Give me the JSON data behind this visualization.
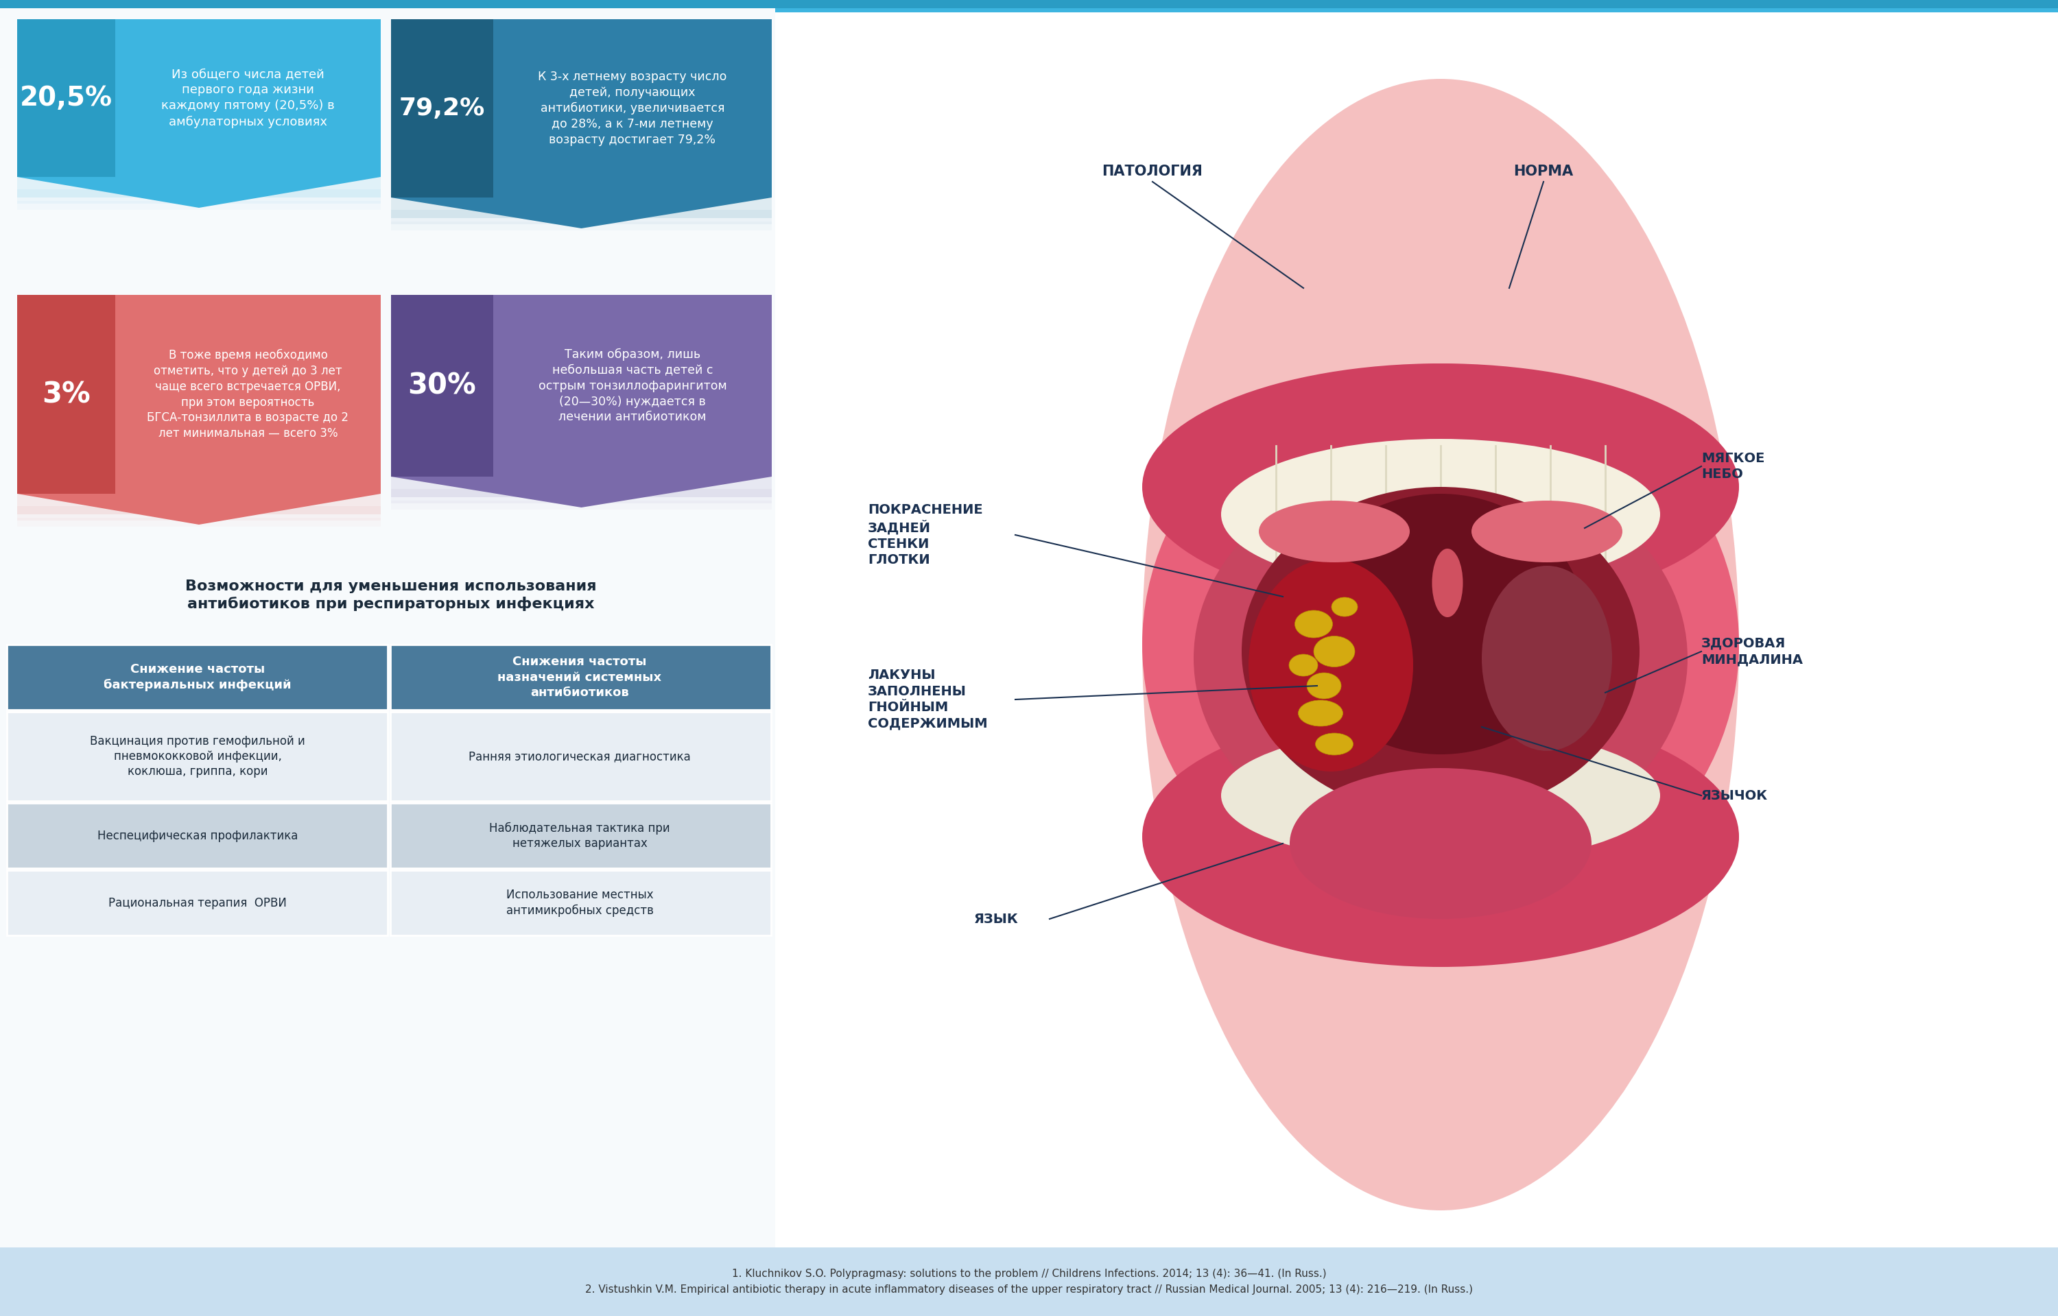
{
  "bg_color": "#ffffff",
  "top_stripe_color": "#3db5e0",
  "box1_pct": "20,5%",
  "box1_text": "Из общего числа детей\nпервого года жизни\nкаждому пятому (20,5%) в\nамбулаторных условиях",
  "box1_pct_color": "#2a9cc4",
  "box1_body_color": "#3db5e0",
  "box2_pct": "79,2%",
  "box2_text": "К 3-х летнему возрасту число\nдетей, получающих\nантибиотики, увеличивается\nдо 28%, а к 7-ми летнему\nвозрасту достигает 79,2%",
  "box2_pct_color": "#1e6080",
  "box2_body_color": "#2e7fa8",
  "box3_pct": "3%",
  "box3_text": "В тоже время необходимо\nотметить, что у детей до 3 лет\nчаще всего встречается ОРВИ,\nпри этом вероятность\nБГСА-тонзиллита в возрасте до 2\nлет минимальная — всего 3%",
  "box3_pct_color": "#c44848",
  "box3_body_color": "#e07070",
  "box4_pct": "30%",
  "box4_text": "Таким образом, лишь\nнебольшая часть детей с\nострым тонзиллофарингитом\n(20—30%) нуждается в\nлечении антибиотиком",
  "box4_pct_color": "#5a4a8a",
  "box4_body_color": "#7a6aaa",
  "table_title": "Возможности для уменьшения использования\nантибиотиков при респираторных инфекциях",
  "table_header1": "Снижение частоты\nбактериальных инфекций",
  "table_header2": "Снижения частоты\nназначений системных\nантибиотиков",
  "table_header_color": "#4a7a9b",
  "table_row1_left": "Вакцинация против гемофильной и\nпневмококковой инфекции,\nкоклюша, гриппа, кори",
  "table_row1_right": "Ранняя этиологическая диагностика",
  "table_row2_left": "Неспецифическая профилактика",
  "table_row2_right": "Наблюдательная тактика при\nнетяжелых вариантах",
  "table_row3_left": "Рациональная терапия  ОРВИ",
  "table_row3_right": "Использование местных\nантимикробных средств",
  "table_row_light": "#e8eef4",
  "table_row_dark": "#c8d4de",
  "anatomy_label_patho": "ПАТОЛОГИЯ",
  "anatomy_label_norm": "НОРМА",
  "anatomy_label3": "ПОКРАСНЕНИЕ\nЗАДНЕЙ\nСТЕНКИ\nГЛОТКИ",
  "anatomy_label4": "ЛАКУНЫ\nЗАПОЛНЕНЫ\nГНОЙНЫМ\nСОДЕРЖИМЫМ",
  "anatomy_label5": "ЯЗЫК",
  "anatomy_label6": "МЯГКОЕ\nНЕБО",
  "anatomy_label7": "ЗДОРОВАЯ\nМИНДАЛИНА",
  "anatomy_label8": "ЯЗЫЧОК",
  "footer_text": "1. Kluchnikov S.O. Polypragmasy: solutions to the problem // Childrens Infections. 2014; 13 (4): 36—41. (In Russ.)\n2. Vistushkin V.M. Empirical antibiotic therapy in acute inflammatory diseases of the upper respiratory tract // Russian Medical Journal. 2005; 13 (4): 216—219. (In Russ.)",
  "footer_color": "#c8dff0",
  "left_bg": "#f5f8fb",
  "right_bg": "#ffffff"
}
